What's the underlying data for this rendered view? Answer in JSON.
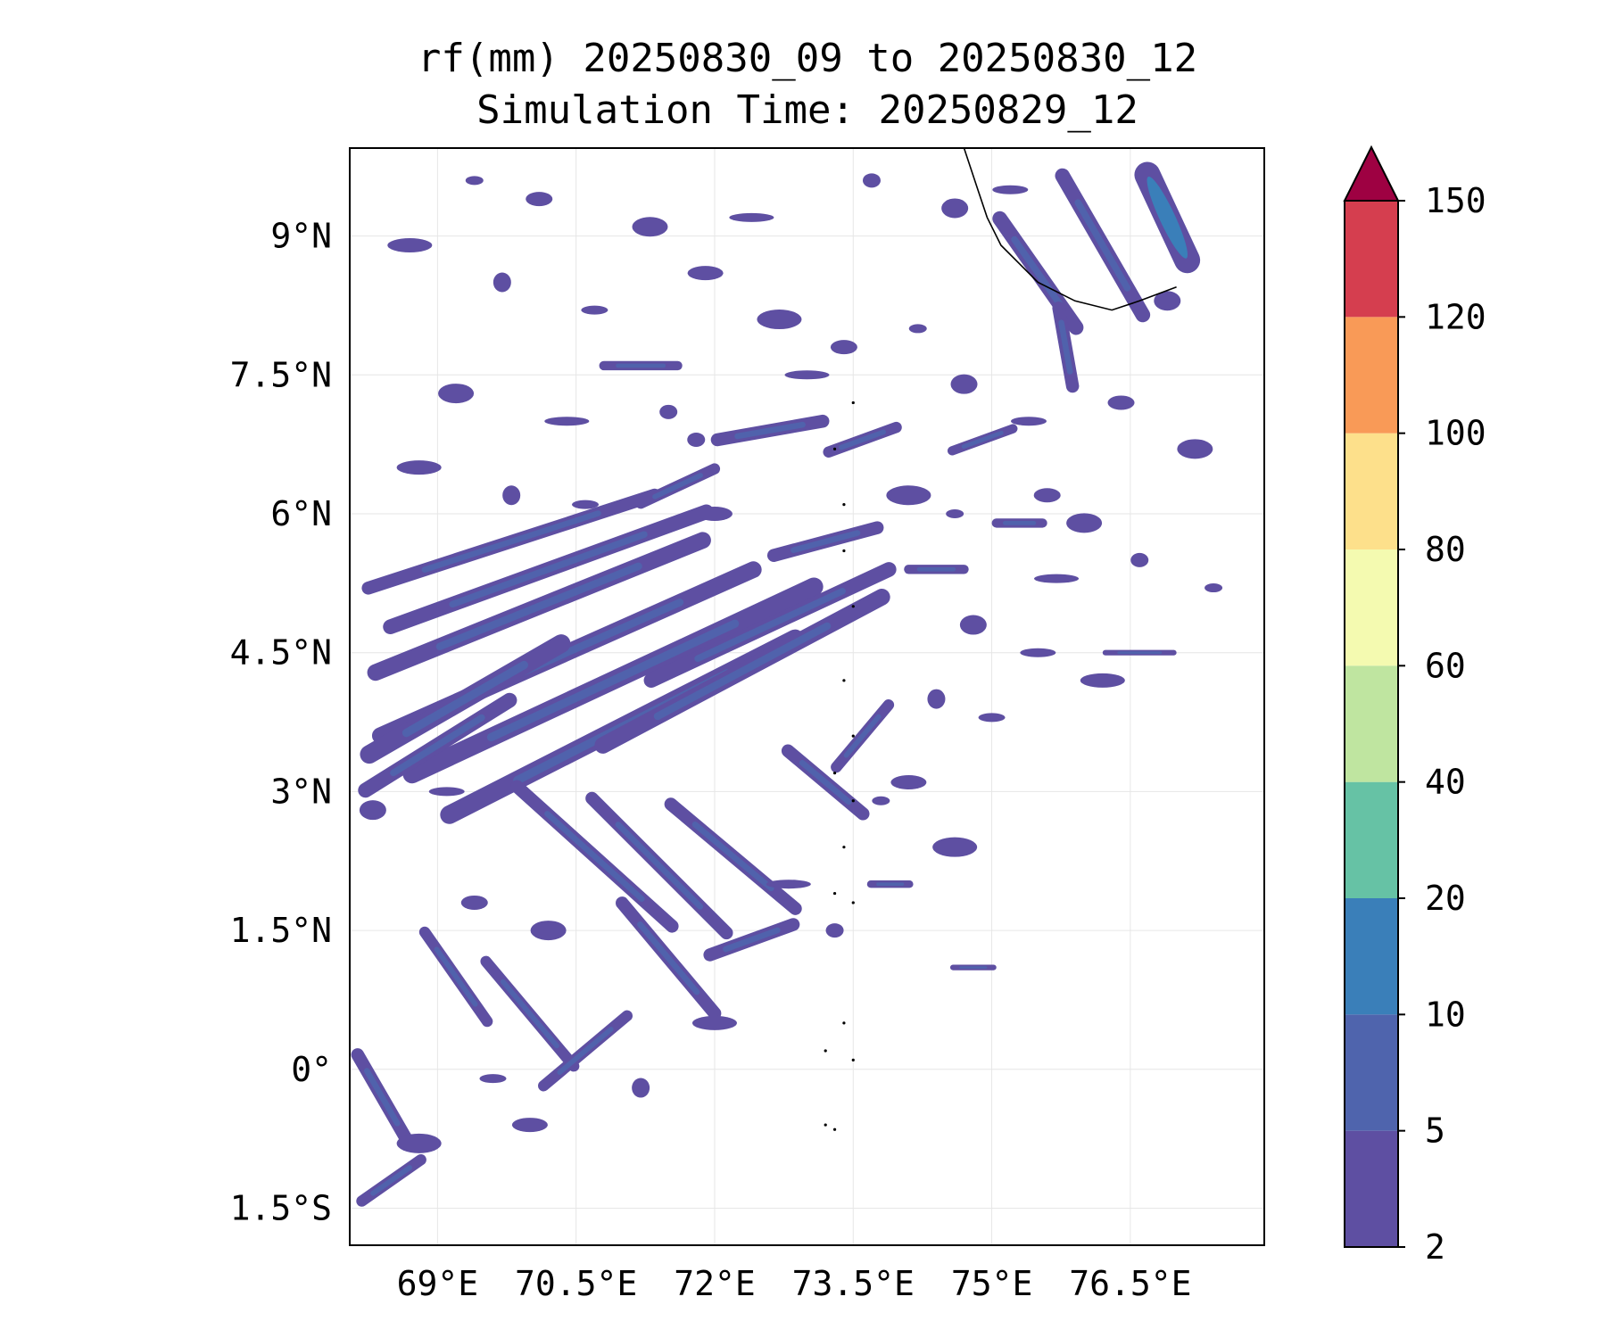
{
  "title": {
    "line1": "rf(mm) 20250830_09 to 20250830_12",
    "line2": "Simulation Time: 20250829_12"
  },
  "map": {
    "lon_range": [
      68.05,
      77.95
    ],
    "lat_range": [
      -1.9,
      9.95
    ],
    "lon_ticks": [
      {
        "value": 69.0,
        "label": "69°E"
      },
      {
        "value": 70.5,
        "label": "70.5°E"
      },
      {
        "value": 72.0,
        "label": "72°E"
      },
      {
        "value": 73.5,
        "label": "73.5°E"
      },
      {
        "value": 75.0,
        "label": "75°E"
      },
      {
        "value": 76.5,
        "label": "76.5°E"
      }
    ],
    "lat_ticks": [
      {
        "value": 9.0,
        "label": "9°N"
      },
      {
        "value": 7.5,
        "label": "7.5°N"
      },
      {
        "value": 6.0,
        "label": "6°N"
      },
      {
        "value": 4.5,
        "label": "4.5°N"
      },
      {
        "value": 3.0,
        "label": "3°N"
      },
      {
        "value": 1.5,
        "label": "1.5°N"
      },
      {
        "value": 0.0,
        "label": "0°"
      },
      {
        "value": -1.5,
        "label": "1.5°S"
      }
    ],
    "gridlines": true
  },
  "colorbar": {
    "levels": [
      {
        "label": "2",
        "color": "#5e4fa2"
      },
      {
        "label": "5",
        "color": "#4f64ad"
      },
      {
        "label": "10",
        "color": "#3a7fb9"
      },
      {
        "label": "20",
        "color": "#66c2a5"
      },
      {
        "label": "40",
        "color": "#bfe5a0"
      },
      {
        "label": "60",
        "color": "#f4fab0"
      },
      {
        "label": "80",
        "color": "#fde08b"
      },
      {
        "label": "100",
        "color": "#f99a57"
      },
      {
        "label": "120",
        "color": "#d53e4f"
      },
      {
        "label": "150",
        "color": "#9e0142"
      }
    ],
    "extend": "max"
  },
  "rain_bands": [
    {
      "lon": 71.0,
      "lat": 3.7,
      "len": 4.4,
      "thick": 0.2,
      "angle": 27
    },
    {
      "lon": 70.9,
      "lat": 4.2,
      "len": 5.0,
      "thick": 0.2,
      "angle": 25
    },
    {
      "lon": 70.4,
      "lat": 4.5,
      "len": 4.6,
      "thick": 0.18,
      "angle": 24
    },
    {
      "lon": 70.1,
      "lat": 5.0,
      "len": 4.0,
      "thick": 0.18,
      "angle": 22
    },
    {
      "lon": 70.2,
      "lat": 5.4,
      "len": 3.8,
      "thick": 0.16,
      "angle": 20
    },
    {
      "lon": 69.8,
      "lat": 5.7,
      "len": 3.4,
      "thick": 0.14,
      "angle": 18
    },
    {
      "lon": 72.3,
      "lat": 4.3,
      "len": 3.6,
      "thick": 0.18,
      "angle": 28
    },
    {
      "lon": 72.6,
      "lat": 4.8,
      "len": 3.0,
      "thick": 0.16,
      "angle": 25
    },
    {
      "lon": 69.3,
      "lat": 4.0,
      "len": 2.6,
      "thick": 0.2,
      "angle": 30
    },
    {
      "lon": 69.0,
      "lat": 3.5,
      "len": 2.0,
      "thick": 0.16,
      "angle": 32
    },
    {
      "lon": 70.7,
      "lat": 2.3,
      "len": 2.4,
      "thick": 0.14,
      "angle": -42
    },
    {
      "lon": 71.4,
      "lat": 2.2,
      "len": 2.2,
      "thick": 0.14,
      "angle": -45
    },
    {
      "lon": 72.2,
      "lat": 2.3,
      "len": 1.9,
      "thick": 0.14,
      "angle": -40
    },
    {
      "lon": 71.5,
      "lat": 1.2,
      "len": 1.7,
      "thick": 0.14,
      "angle": -50
    },
    {
      "lon": 72.4,
      "lat": 1.4,
      "len": 1.1,
      "thick": 0.14,
      "angle": 20
    },
    {
      "lon": 69.2,
      "lat": 1.0,
      "len": 1.3,
      "thick": 0.12,
      "angle": -55
    },
    {
      "lon": 70.0,
      "lat": 0.6,
      "len": 1.6,
      "thick": 0.12,
      "angle": -50
    },
    {
      "lon": 70.6,
      "lat": 0.2,
      "len": 1.3,
      "thick": 0.12,
      "angle": 40
    },
    {
      "lon": 68.4,
      "lat": -0.3,
      "len": 1.2,
      "thick": 0.14,
      "angle": -60
    },
    {
      "lon": 68.5,
      "lat": -1.2,
      "len": 0.9,
      "thick": 0.12,
      "angle": 35
    },
    {
      "lon": 73.2,
      "lat": 3.1,
      "len": 1.2,
      "thick": 0.14,
      "angle": -40
    },
    {
      "lon": 73.6,
      "lat": 3.6,
      "len": 1.0,
      "thick": 0.12,
      "angle": 50
    },
    {
      "lon": 73.2,
      "lat": 5.7,
      "len": 1.3,
      "thick": 0.14,
      "angle": 15
    },
    {
      "lon": 72.6,
      "lat": 6.9,
      "len": 1.3,
      "thick": 0.14,
      "angle": 10
    },
    {
      "lon": 73.6,
      "lat": 6.8,
      "len": 0.9,
      "thick": 0.12,
      "angle": 20
    },
    {
      "lon": 71.2,
      "lat": 7.6,
      "len": 0.9,
      "thick": 0.1,
      "angle": 0
    },
    {
      "lon": 71.6,
      "lat": 6.3,
      "len": 1.0,
      "thick": 0.12,
      "angle": 25
    },
    {
      "lon": 75.5,
      "lat": 8.6,
      "len": 1.6,
      "thick": 0.16,
      "angle": -55
    },
    {
      "lon": 76.2,
      "lat": 8.9,
      "len": 1.9,
      "thick": 0.16,
      "angle": -60
    },
    {
      "lon": 75.8,
      "lat": 7.8,
      "len": 1.0,
      "thick": 0.14,
      "angle": -80
    },
    {
      "lon": 74.9,
      "lat": 6.8,
      "len": 0.8,
      "thick": 0.1,
      "angle": 20
    },
    {
      "lon": 75.3,
      "lat": 5.9,
      "len": 0.6,
      "thick": 0.1,
      "angle": 0
    },
    {
      "lon": 76.9,
      "lat": 9.2,
      "len": 1.3,
      "thick": 0.28,
      "angle": -65
    },
    {
      "lon": 74.4,
      "lat": 5.4,
      "len": 0.7,
      "thick": 0.1,
      "angle": 0
    },
    {
      "lon": 76.6,
      "lat": 4.5,
      "len": 0.8,
      "thick": 0.06,
      "angle": 0
    },
    {
      "lon": 74.8,
      "lat": 1.1,
      "len": 0.5,
      "thick": 0.06,
      "angle": 0
    },
    {
      "lon": 73.9,
      "lat": 2.0,
      "len": 0.5,
      "thick": 0.08,
      "angle": 0
    }
  ],
  "rain_cells": [
    [
      69.4,
      9.6
    ],
    [
      70.1,
      9.4
    ],
    [
      71.3,
      9.1
    ],
    [
      72.4,
      9.2
    ],
    [
      73.7,
      9.6
    ],
    [
      74.6,
      9.3
    ],
    [
      75.2,
      9.5
    ],
    [
      68.7,
      8.9
    ],
    [
      69.7,
      8.5
    ],
    [
      70.7,
      8.2
    ],
    [
      71.9,
      8.6
    ],
    [
      72.7,
      8.1
    ],
    [
      74.2,
      8.0
    ],
    [
      73.4,
      7.8
    ],
    [
      69.2,
      7.3
    ],
    [
      70.4,
      7.0
    ],
    [
      71.5,
      7.1
    ],
    [
      74.7,
      7.4
    ],
    [
      75.4,
      7.0
    ],
    [
      68.8,
      6.5
    ],
    [
      69.8,
      6.2
    ],
    [
      70.6,
      6.1
    ],
    [
      72.0,
      6.0
    ],
    [
      74.1,
      6.2
    ],
    [
      74.6,
      6.0
    ],
    [
      75.6,
      6.2
    ],
    [
      76.0,
      5.9
    ],
    [
      75.7,
      5.3
    ],
    [
      76.6,
      5.5
    ],
    [
      74.8,
      4.8
    ],
    [
      75.5,
      4.5
    ],
    [
      76.2,
      4.2
    ],
    [
      74.4,
      4.0
    ],
    [
      75.0,
      3.8
    ],
    [
      74.1,
      3.1
    ],
    [
      74.6,
      2.4
    ],
    [
      73.8,
      2.9
    ],
    [
      69.4,
      1.8
    ],
    [
      70.2,
      1.5
    ],
    [
      72.8,
      2.0
    ],
    [
      73.3,
      1.5
    ],
    [
      68.3,
      2.8
    ],
    [
      69.1,
      3.0
    ],
    [
      72.0,
      0.5
    ],
    [
      71.2,
      -0.2
    ],
    [
      69.6,
      -0.1
    ],
    [
      70.0,
      -0.6
    ],
    [
      68.8,
      -0.8
    ],
    [
      77.4,
      5.2
    ],
    [
      76.4,
      7.2
    ],
    [
      77.2,
      6.7
    ],
    [
      73.0,
      7.5
    ],
    [
      71.8,
      6.8
    ],
    [
      76.9,
      8.3
    ]
  ],
  "coastline": [
    [
      74.7,
      9.95
    ],
    [
      74.85,
      9.5
    ],
    [
      74.95,
      9.2
    ],
    [
      75.1,
      8.9
    ],
    [
      75.3,
      8.7
    ],
    [
      75.5,
      8.5
    ],
    [
      75.9,
      8.3
    ],
    [
      76.3,
      8.2
    ],
    [
      76.6,
      8.3
    ],
    [
      77.0,
      8.45
    ]
  ],
  "islands": [
    [
      73.5,
      7.2
    ],
    [
      73.3,
      6.7
    ],
    [
      73.4,
      6.1
    ],
    [
      73.4,
      5.6
    ],
    [
      73.5,
      5.0
    ],
    [
      73.4,
      4.2
    ],
    [
      73.5,
      3.6
    ],
    [
      73.3,
      3.2
    ],
    [
      73.5,
      2.9
    ],
    [
      73.4,
      2.4
    ],
    [
      73.3,
      1.9
    ],
    [
      73.5,
      1.8
    ],
    [
      73.4,
      0.5
    ],
    [
      73.2,
      0.2
    ],
    [
      73.5,
      0.1
    ],
    [
      73.2,
      -0.6
    ],
    [
      73.3,
      -0.65
    ]
  ]
}
